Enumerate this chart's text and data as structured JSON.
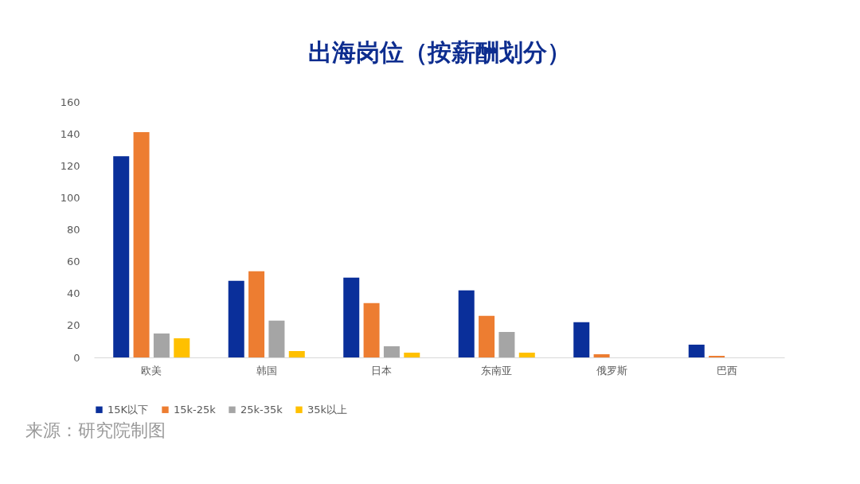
{
  "chart_data": {
    "type": "bar",
    "title": "出海岗位（按薪酬划分）",
    "categories": [
      "欧美",
      "韩国",
      "日本",
      "东南亚",
      "俄罗斯",
      "巴西"
    ],
    "series": [
      {
        "name": "15K以下",
        "color": "#0a2f9a",
        "values": [
          126,
          48,
          50,
          42,
          22,
          8
        ]
      },
      {
        "name": "15k-25k",
        "color": "#ed7d31",
        "values": [
          141,
          54,
          34,
          26,
          2,
          1
        ]
      },
      {
        "name": "25k-35k",
        "color": "#a5a5a5",
        "values": [
          15,
          23,
          7,
          16,
          0,
          0
        ]
      },
      {
        "name": "35k以上",
        "color": "#ffc000",
        "values": [
          12,
          4,
          3,
          3,
          0,
          0
        ]
      }
    ],
    "ylim": [
      0,
      160
    ],
    "yticks": [
      0,
      20,
      40,
      60,
      80,
      100,
      120,
      140,
      160
    ],
    "grid": false,
    "legend": "bottom",
    "annotations": [
      "来源：研究院制图"
    ]
  }
}
